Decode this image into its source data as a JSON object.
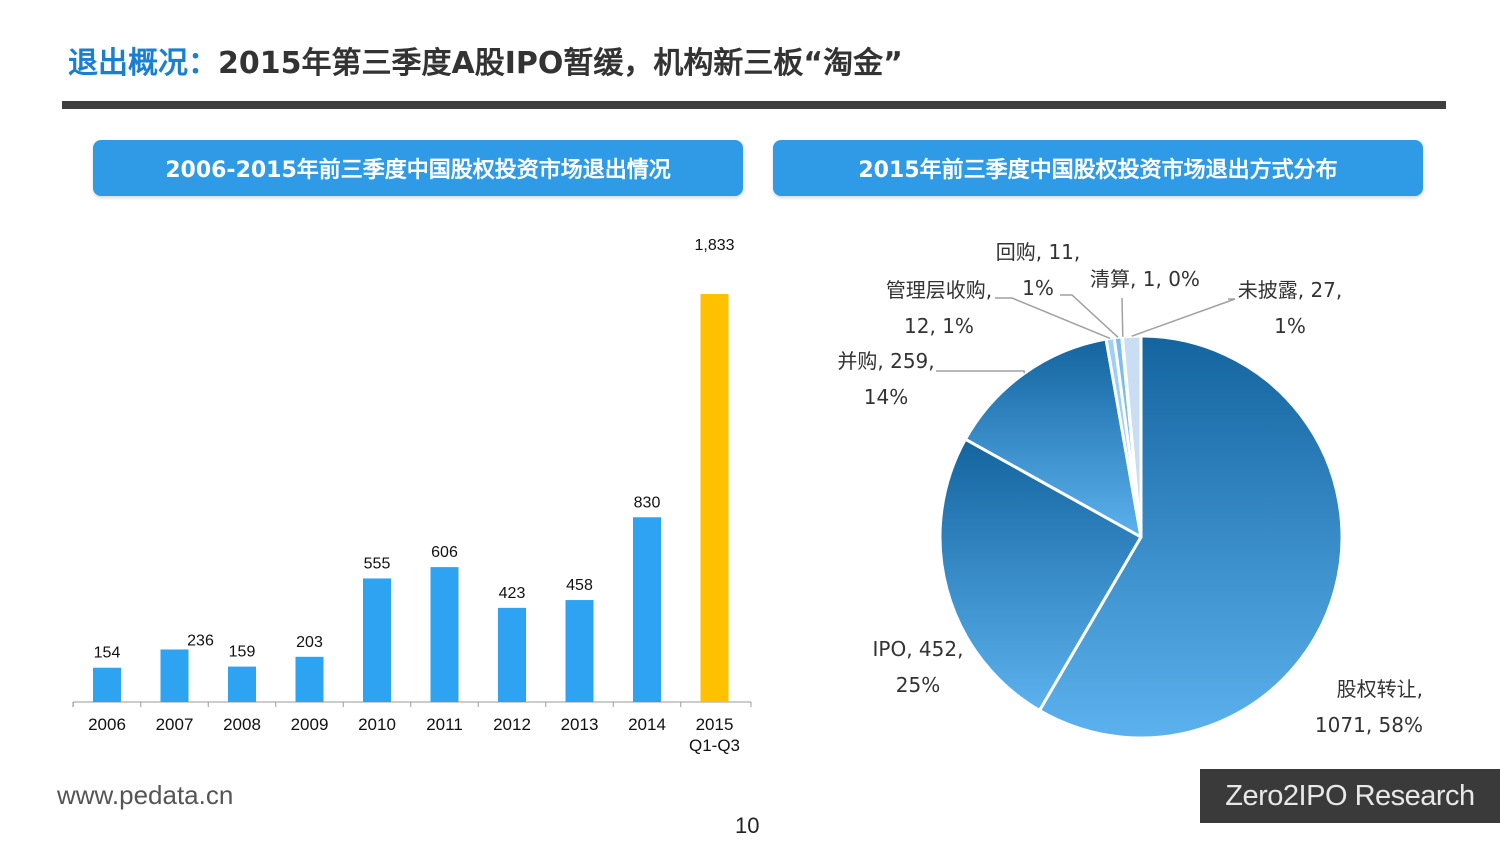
{
  "page": {
    "title_accent": "退出概况：",
    "title_rest": "2015年第三季度A股IPO暂缓，机构新三板“淘金”",
    "footer_url": "www.pedata.cn",
    "page_number": "10",
    "brand": "Zero2IPO Research"
  },
  "colors": {
    "accent": "#1a7fd0",
    "header_bg": "#2f9be6",
    "bar": "#2ea3f2",
    "bar_highlight": "#ffc000",
    "pie_dark": "#13649f",
    "pie_light": "#5cb2ee"
  },
  "chart_data": [
    {
      "type": "bar",
      "title": "2006-2015年前三季度中国股权投资市场退出情况",
      "categories": [
        "2006",
        "2007",
        "2008",
        "2009",
        "2010",
        "2011",
        "2012",
        "2013",
        "2014",
        "2015\nQ1-Q3"
      ],
      "values": [
        154,
        236,
        159,
        203,
        555,
        606,
        423,
        458,
        830,
        1833
      ],
      "data_labels": [
        "154",
        "236",
        "159",
        "203",
        "555",
        "606",
        "423",
        "458",
        "830",
        "1,833"
      ],
      "highlight_index": 9,
      "ylim": [
        0,
        1833
      ],
      "grid": false,
      "xlabel": "",
      "ylabel": ""
    },
    {
      "type": "pie",
      "title": "2015年前三季度中国股权投资市场退出方式分布",
      "slices": [
        {
          "name": "股权转让",
          "value": 1071,
          "percent": "58%",
          "label_lines": [
            "股权转让,",
            "1071, 58%"
          ]
        },
        {
          "name": "IPO",
          "value": 452,
          "percent": "25%",
          "label_lines": [
            "IPO, 452,",
            "25%"
          ]
        },
        {
          "name": "并购",
          "value": 259,
          "percent": "14%",
          "label_lines": [
            "并购, 259,",
            "14%"
          ]
        },
        {
          "name": "管理层收购",
          "value": 12,
          "percent": "1%",
          "label_lines": [
            "管理层收购,",
            "12, 1%"
          ]
        },
        {
          "name": "回购",
          "value": 11,
          "percent": "1%",
          "label_lines": [
            "回购, 11,",
            "1%"
          ]
        },
        {
          "name": "清算",
          "value": 1,
          "percent": "0%",
          "label_lines": [
            "清算, 1, 0%"
          ]
        },
        {
          "name": "未披露",
          "value": 27,
          "percent": "1%",
          "label_lines": [
            "未披露, 27,",
            "1%"
          ]
        }
      ]
    }
  ]
}
